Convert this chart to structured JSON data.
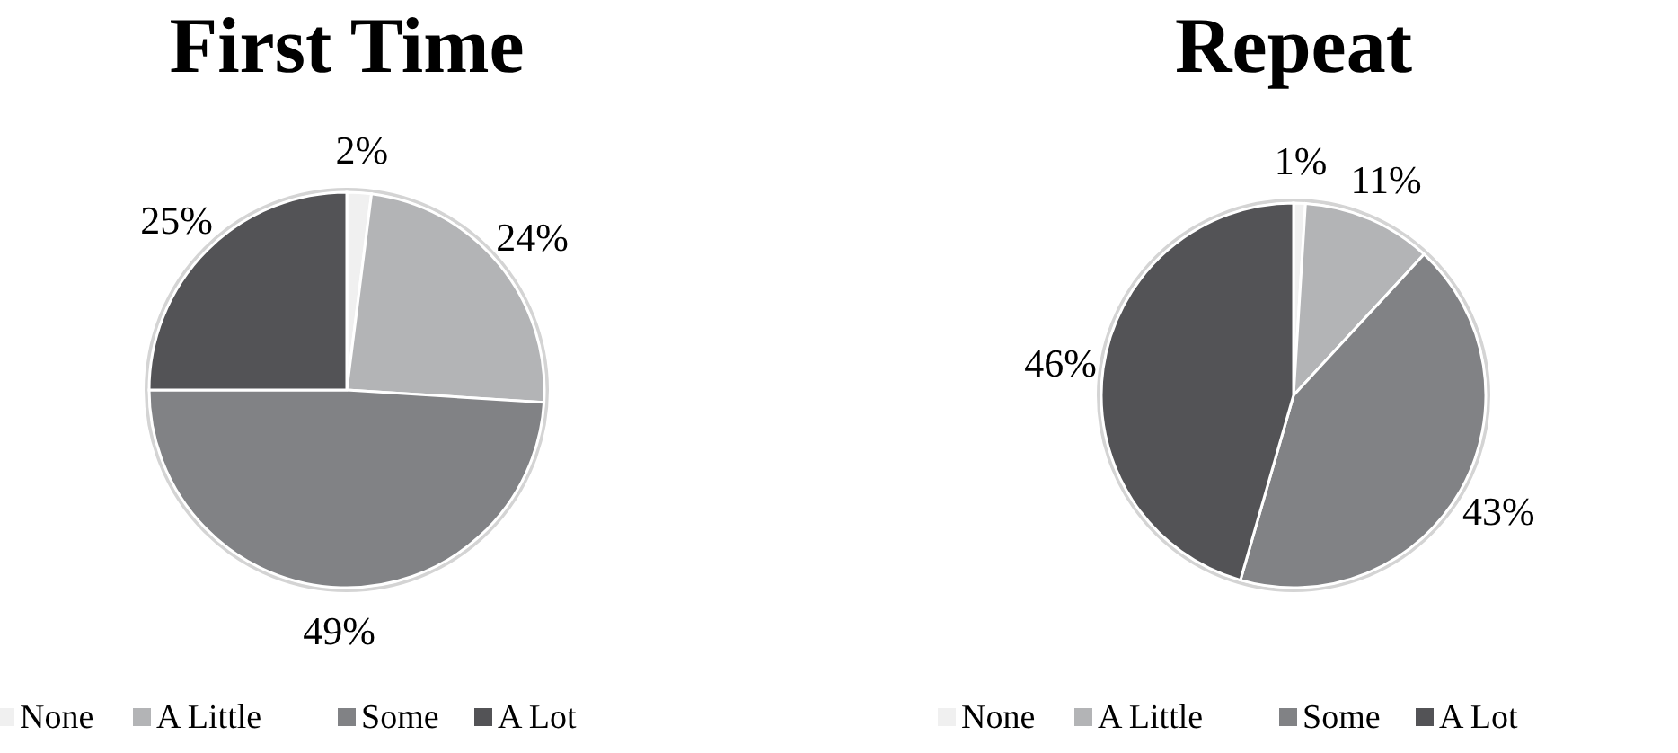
{
  "chart_data": [
    {
      "type": "pie",
      "title": "First Time",
      "categories": [
        "None",
        "A Little",
        "Some",
        "A Lot"
      ],
      "values": [
        2,
        24,
        49,
        25
      ],
      "colors": [
        "#f0f0f0",
        "#b3b4b6",
        "#818285",
        "#535356"
      ],
      "value_labels": [
        "2%",
        "24%",
        "49%",
        "25%"
      ],
      "legend": "bottom"
    },
    {
      "type": "pie",
      "title": "Repeat",
      "categories": [
        "None",
        "A Little",
        "Some",
        "A Lot"
      ],
      "values": [
        1,
        11,
        43,
        46
      ],
      "colors": [
        "#f0f0f0",
        "#b3b4b6",
        "#818285",
        "#535356"
      ],
      "value_labels": [
        "1%",
        "11%",
        "43%",
        "46%"
      ],
      "legend": "bottom"
    }
  ]
}
